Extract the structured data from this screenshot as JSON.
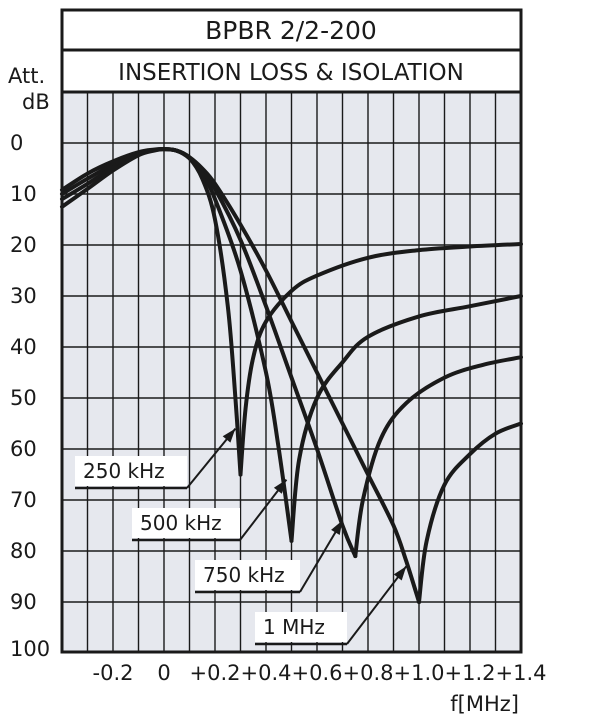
{
  "chart_data": {
    "type": "line",
    "title": "BPBR 2/2-200",
    "subtitle": "INSERTION LOSS & ISOLATION",
    "ylabel_top": "Att.",
    "ylabel_unit": "dB",
    "xlabel": "f[MHz]",
    "xlim": [
      -0.4,
      1.4
    ],
    "ylim": [
      0,
      100
    ],
    "y_inverted": true,
    "grid": true,
    "x_ticks": [
      -0.2,
      0,
      0.2,
      0.4,
      0.6,
      0.8,
      1.0,
      1.2,
      1.4
    ],
    "x_tick_labels": [
      "-0.2",
      "0",
      "+0.2",
      "+0.4",
      "+0.6",
      "+0.8",
      "+1.0",
      "+1.2",
      "+1.4"
    ],
    "y_ticks": [
      0,
      10,
      20,
      30,
      40,
      50,
      60,
      70,
      80,
      90,
      100
    ],
    "y_tick_labels": [
      "0",
      "10",
      "20",
      "30",
      "40",
      "50",
      "60",
      "70",
      "80",
      "90",
      "100"
    ],
    "colors": {
      "background": "#e6e8ee",
      "line": "#1a1a1a",
      "grid": "#1a1a1a"
    },
    "series": [
      {
        "name": "250 kHz",
        "insertion_loss": [
          [
            -0.4,
            9.2
          ],
          [
            -0.3,
            6.0
          ],
          [
            -0.2,
            3.6
          ],
          [
            -0.1,
            1.8
          ],
          [
            -0.04,
            1.3
          ],
          [
            0,
            1.2
          ],
          [
            0.05,
            1.5
          ],
          [
            0.1,
            3.0
          ],
          [
            0.15,
            7.0
          ],
          [
            0.2,
            15.0
          ],
          [
            0.25,
            32.0
          ],
          [
            0.28,
            50.0
          ],
          [
            0.3,
            65.0
          ]
        ],
        "isolation": [
          [
            0.3,
            65.0
          ],
          [
            0.32,
            52.0
          ],
          [
            0.35,
            42.0
          ],
          [
            0.4,
            35.0
          ],
          [
            0.5,
            29.0
          ],
          [
            0.6,
            26.0
          ],
          [
            0.8,
            22.5
          ],
          [
            1.0,
            21.0
          ],
          [
            1.2,
            20.3
          ],
          [
            1.4,
            19.8
          ]
        ]
      },
      {
        "name": "500 kHz",
        "insertion_loss": [
          [
            -0.4,
            10.0
          ],
          [
            -0.3,
            7.0
          ],
          [
            -0.2,
            4.2
          ],
          [
            -0.1,
            2.0
          ],
          [
            -0.04,
            1.4
          ],
          [
            0,
            1.2
          ],
          [
            0.05,
            1.5
          ],
          [
            0.1,
            3.0
          ],
          [
            0.15,
            6.0
          ],
          [
            0.2,
            11.0
          ],
          [
            0.3,
            25.0
          ],
          [
            0.4,
            45.0
          ],
          [
            0.45,
            60.0
          ],
          [
            0.5,
            78.0
          ]
        ],
        "isolation": [
          [
            0.5,
            78.0
          ],
          [
            0.53,
            62.0
          ],
          [
            0.6,
            50.0
          ],
          [
            0.7,
            43.0
          ],
          [
            0.8,
            38.0
          ],
          [
            1.0,
            34.0
          ],
          [
            1.2,
            32.0
          ],
          [
            1.4,
            30.0
          ]
        ]
      },
      {
        "name": "750 kHz",
        "insertion_loss": [
          [
            -0.4,
            11.0
          ],
          [
            -0.3,
            8.0
          ],
          [
            -0.2,
            4.8
          ],
          [
            -0.1,
            2.2
          ],
          [
            -0.04,
            1.4
          ],
          [
            0,
            1.2
          ],
          [
            0.05,
            1.5
          ],
          [
            0.1,
            2.8
          ],
          [
            0.15,
            5.5
          ],
          [
            0.2,
            9.0
          ],
          [
            0.3,
            19.0
          ],
          [
            0.4,
            32.0
          ],
          [
            0.5,
            46.0
          ],
          [
            0.6,
            60.0
          ],
          [
            0.7,
            75.0
          ],
          [
            0.75,
            81.0
          ]
        ],
        "isolation": [
          [
            0.75,
            81.0
          ],
          [
            0.78,
            70.0
          ],
          [
            0.85,
            58.0
          ],
          [
            0.95,
            51.0
          ],
          [
            1.1,
            46.0
          ],
          [
            1.25,
            43.5
          ],
          [
            1.4,
            42.0
          ]
        ]
      },
      {
        "name": "1 MHz",
        "insertion_loss": [
          [
            -0.4,
            12.5
          ],
          [
            -0.3,
            9.0
          ],
          [
            -0.2,
            5.4
          ],
          [
            -0.1,
            2.4
          ],
          [
            -0.04,
            1.5
          ],
          [
            0,
            1.2
          ],
          [
            0.05,
            1.5
          ],
          [
            0.1,
            2.8
          ],
          [
            0.15,
            5.0
          ],
          [
            0.2,
            8.0
          ],
          [
            0.3,
            16.0
          ],
          [
            0.4,
            25.0
          ],
          [
            0.5,
            35.0
          ],
          [
            0.6,
            45.0
          ],
          [
            0.7,
            55.0
          ],
          [
            0.8,
            65.0
          ],
          [
            0.9,
            75.0
          ],
          [
            0.95,
            82.0
          ],
          [
            1.0,
            90.0
          ]
        ],
        "isolation": [
          [
            1.0,
            90.0
          ],
          [
            1.03,
            78.0
          ],
          [
            1.1,
            67.0
          ],
          [
            1.2,
            61.0
          ],
          [
            1.3,
            57.0
          ],
          [
            1.4,
            55.0
          ]
        ]
      }
    ],
    "annotations": [
      {
        "text": "250 kHz",
        "points_to": [
          0.28,
          56.0
        ]
      },
      {
        "text": "500 kHz",
        "points_to": [
          0.48,
          66.0
        ]
      },
      {
        "text": "750 kHz",
        "points_to": [
          0.7,
          74.0
        ]
      },
      {
        "text": "1 MHz",
        "points_to": [
          0.95,
          83.0
        ]
      }
    ]
  }
}
